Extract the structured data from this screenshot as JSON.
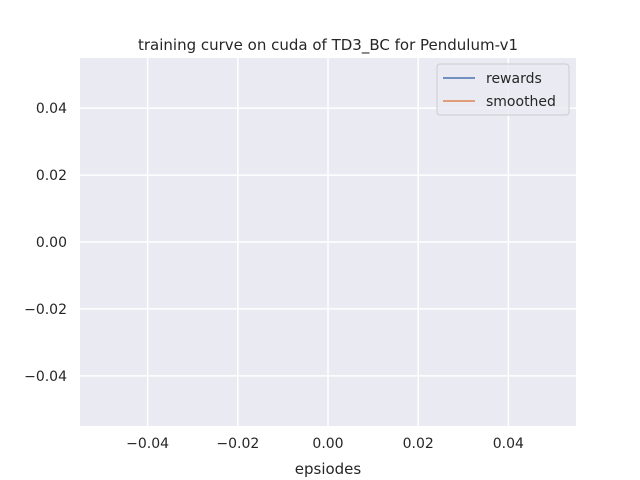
{
  "chart_data": {
    "type": "line",
    "title": "training curve on cuda of TD3_BC for Pendulum-v1",
    "xlabel": "epsiodes",
    "ylabel": "",
    "xlim": [
      -0.055,
      0.055
    ],
    "ylim": [
      -0.055,
      0.055
    ],
    "x_ticks": [
      -0.04,
      -0.02,
      0.0,
      0.02,
      0.04
    ],
    "x_tick_labels": [
      "−0.04",
      "−0.02",
      "0.00",
      "0.02",
      "0.04"
    ],
    "y_ticks": [
      0.04,
      0.02,
      0.0,
      -0.02,
      -0.04
    ],
    "y_tick_labels": [
      "0.04",
      "0.02",
      "0.00",
      "−0.02",
      "−0.04"
    ],
    "grid": true,
    "legend_position": "top-right",
    "series": [
      {
        "name": "rewards",
        "color": "#4c72b0",
        "x": [],
        "values": []
      },
      {
        "name": "smoothed",
        "color": "#dd8452",
        "x": [],
        "values": []
      }
    ]
  },
  "colors": {
    "plot_background": "#eaeaf2",
    "grid": "#ffffff",
    "text": "#262626"
  }
}
